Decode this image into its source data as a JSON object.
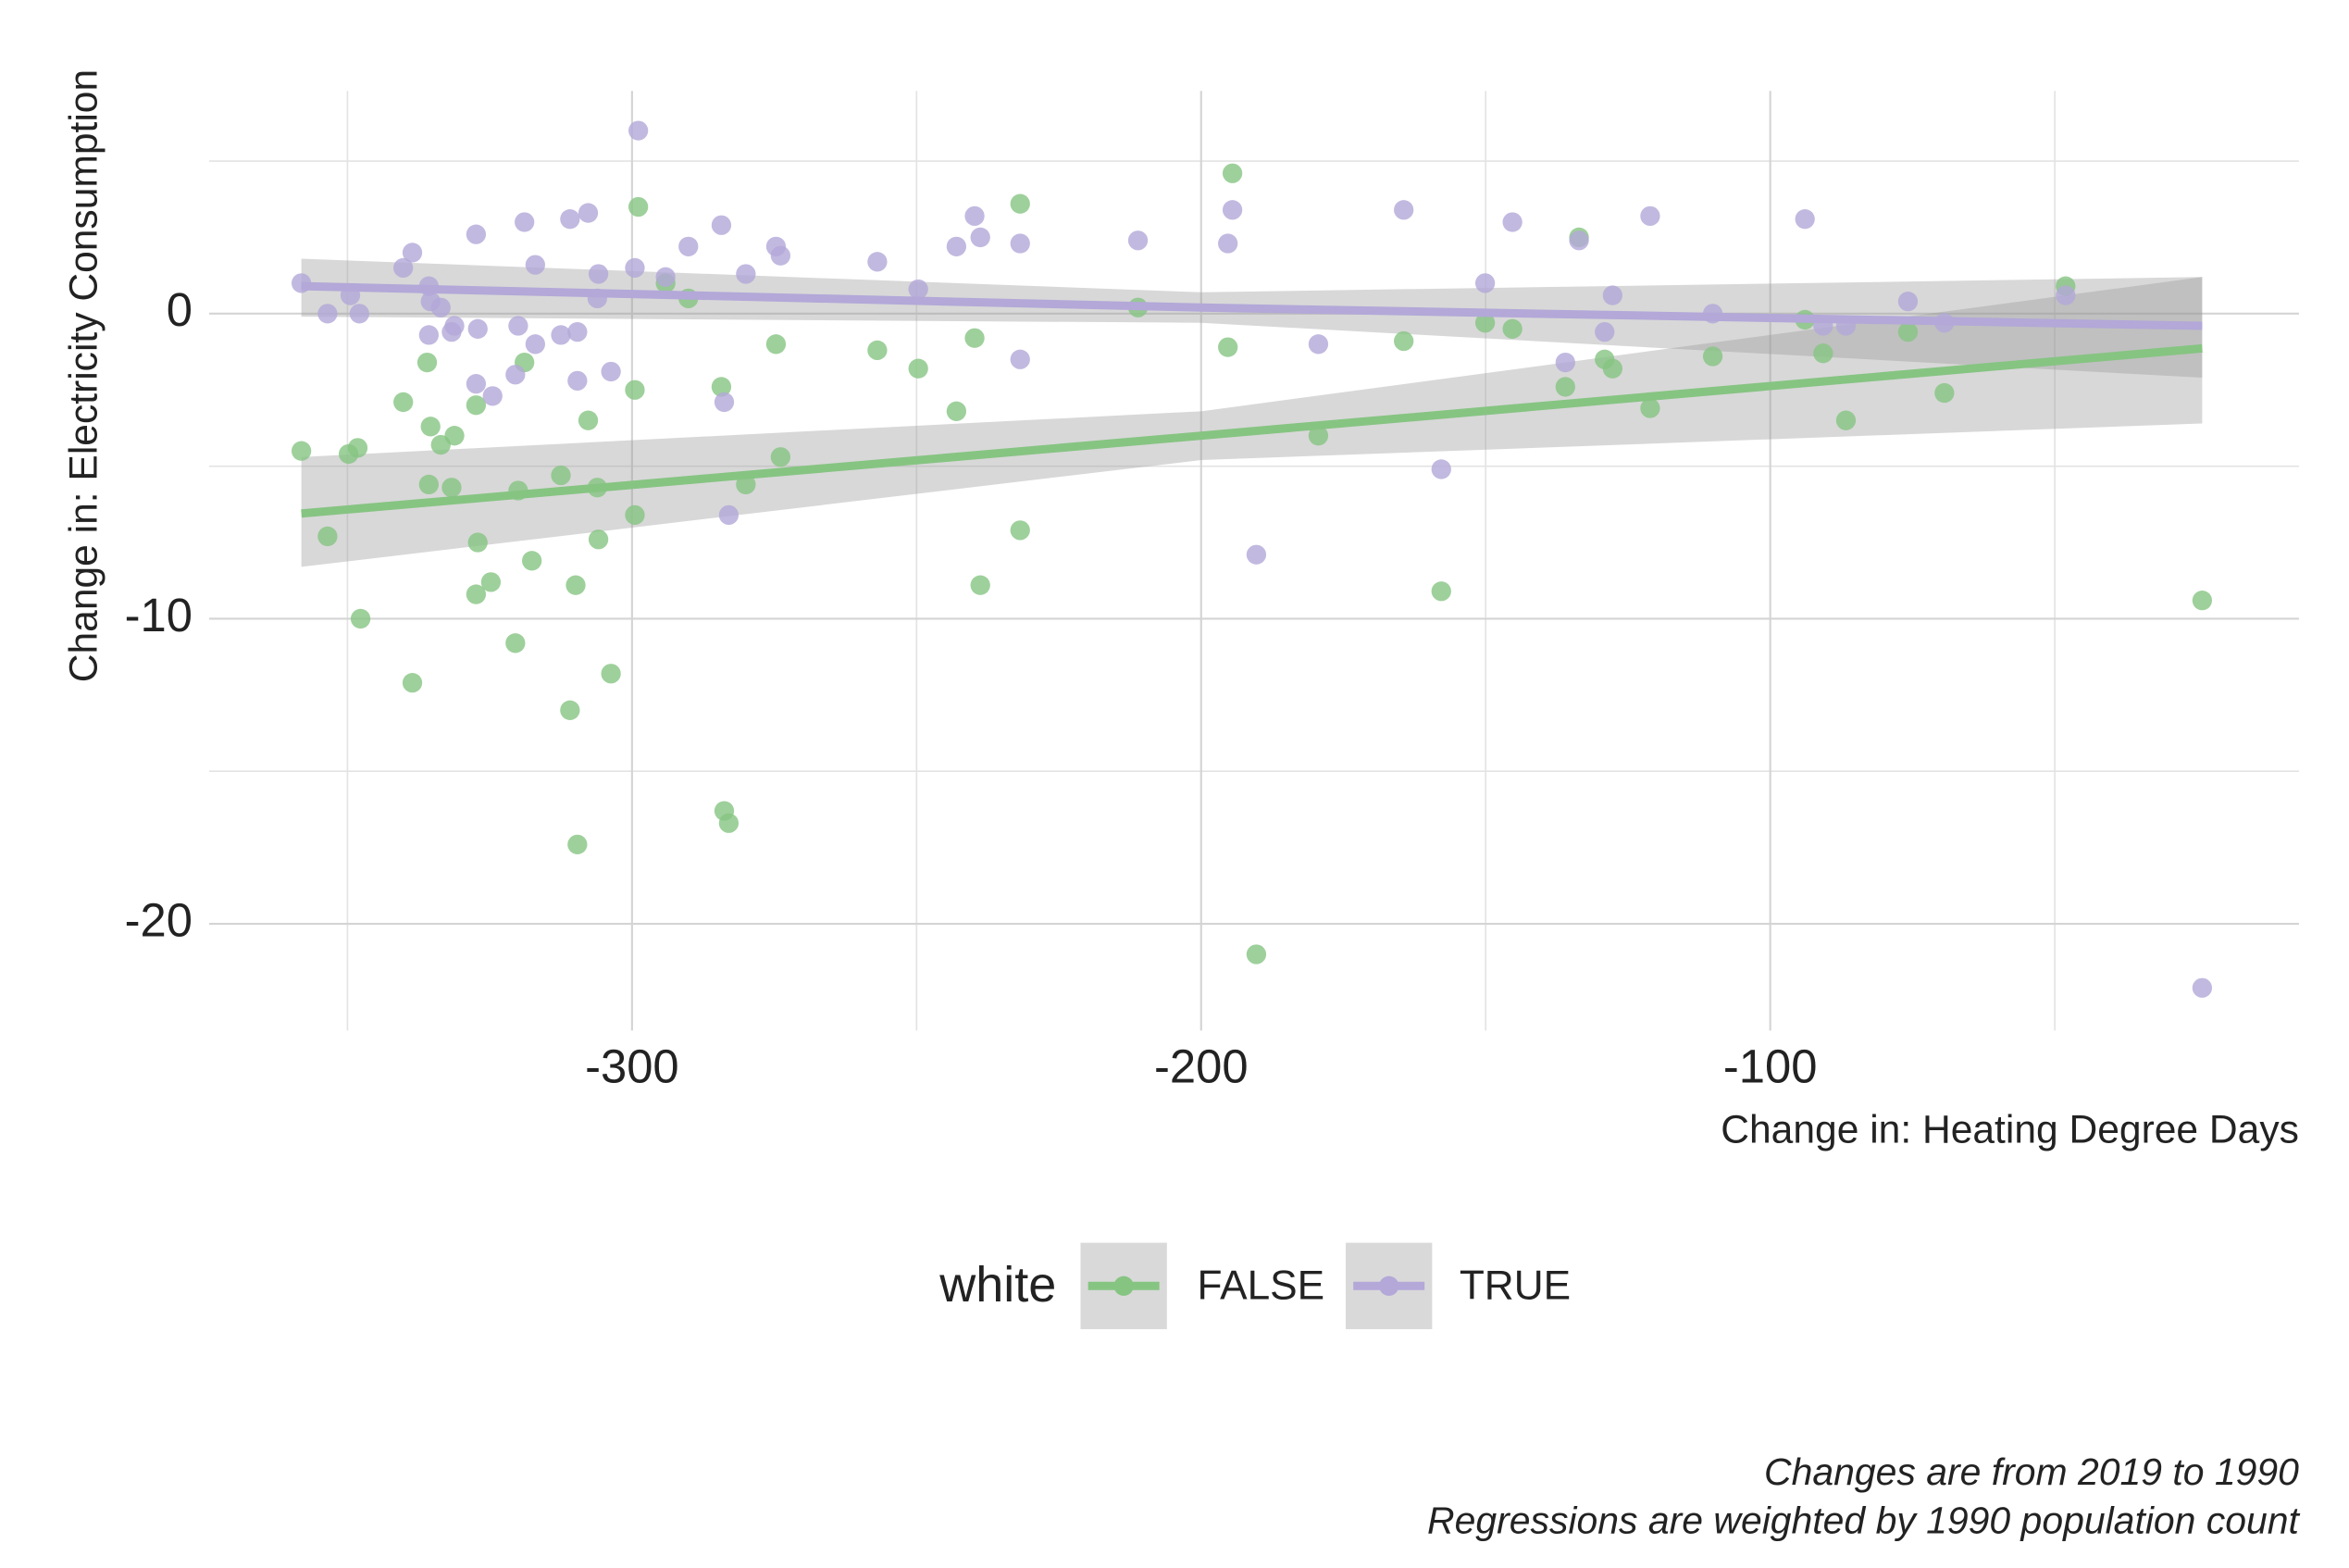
{
  "chart_data": {
    "type": "scatter",
    "x_label": "Change in: Heating Degree Days",
    "y_label": "Change in: Electricity Consumption",
    "legend_title": "white",
    "caption": [
      "Changes are from 2019 to 1990",
      "Regressions are weighted by 1990 population count"
    ],
    "xlim": [
      -374.3,
      -7.1
    ],
    "ylim": [
      -23.5,
      7.3
    ],
    "xticks": [
      -300,
      -200,
      -100
    ],
    "yticks": [
      -20,
      -10,
      0
    ],
    "xminorticks": [
      -350,
      -250,
      -150,
      -50
    ],
    "yminorticks": [
      -15,
      -5,
      5
    ],
    "grid": true,
    "legend": "bottom",
    "series": [
      {
        "name": "FALSE",
        "color": "#86c482",
        "x": [
          -358.1,
          -349.8,
          -348.2,
          -353.5,
          -347.7,
          -338.6,
          -340.2,
          -336,
          -335.4,
          -333.6,
          -331.2,
          -335.7,
          -331.7,
          -327.4,
          -327.1,
          -327.4,
          -324.8,
          -320.5,
          -320,
          -318.9,
          -317.6,
          -312.5,
          -310.9,
          -309.6,
          -309.9,
          -307.7,
          -306.1,
          -305.9,
          -303.7,
          -299.5,
          -299.5,
          -298.9,
          -294.1,
          -290.1,
          -284.3,
          -283.8,
          -283,
          -280,
          -274.7,
          -273.9,
          -256.9,
          -249.7,
          -243,
          -239.8,
          -238.8,
          -231.8,
          -231.8,
          -211.1,
          -194.5,
          -195.3,
          -190.3,
          -179.4,
          -164.4,
          -157.8,
          -150.1,
          -145.3,
          -136,
          -133.6,
          -129.1,
          -127.7,
          -121.1,
          -110.1,
          -93.9,
          -90.7,
          -86.7,
          -75.8,
          -69.4,
          -48.1,
          -24.1
        ],
        "values": [
          -4.5,
          -4.6,
          -4.4,
          -7.3,
          -10.0,
          -12.1,
          -2.9,
          -1.6,
          -3.7,
          -4.3,
          -4.0,
          -5.6,
          -5.7,
          -3.0,
          -7.5,
          -9.2,
          -8.8,
          -10.8,
          -5.8,
          -1.6,
          -8.1,
          -5.3,
          -13.0,
          -17.4,
          -8.9,
          -3.5,
          -5.7,
          -7.4,
          -11.8,
          -2.5,
          -6.6,
          3.5,
          1.0,
          0.5,
          -2.4,
          -16.3,
          -16.7,
          -5.6,
          -1.0,
          -4.7,
          -1.2,
          -1.8,
          -3.2,
          -0.8,
          -8.9,
          3.6,
          -7.1,
          0.2,
          4.6,
          -1.1,
          -21.0,
          -4.0,
          -0.9,
          -9.1,
          -0.3,
          -0.5,
          -2.4,
          2.5,
          -1.5,
          -1.8,
          -3.1,
          -1.4,
          -0.2,
          -1.3,
          -3.5,
          -0.6,
          -2.6,
          0.9,
          -9.4
        ],
        "fit": {
          "x": [
            -358.1,
            -200,
            -24.1
          ],
          "y": [
            -6.55,
            -4.0,
            -1.14
          ],
          "upper": [
            -4.7,
            -3.2,
            1.2
          ],
          "lower": [
            -8.3,
            -4.8,
            -3.6
          ]
        }
      },
      {
        "name": "TRUE",
        "color": "#b3a8d8",
        "x": [
          -358.1,
          -353.5,
          -349.5,
          -347.9,
          -340.2,
          -338.6,
          -335.7,
          -335.4,
          -335.7,
          -333.6,
          -331.7,
          -331.2,
          -327.4,
          -327.1,
          -327.4,
          -324.5,
          -320.5,
          -320,
          -318.9,
          -317,
          -317,
          -312.5,
          -310.9,
          -309.6,
          -309.6,
          -307.7,
          -306.1,
          -305.9,
          -303.7,
          -299.5,
          -298.9,
          -294.1,
          -290.1,
          -284.3,
          -283.8,
          -283,
          -280,
          -274.7,
          -273.9,
          -256.9,
          -249.7,
          -243,
          -239.8,
          -238.8,
          -231.8,
          -231.8,
          -211.1,
          -194.5,
          -195.3,
          -190.3,
          -179.4,
          -164.4,
          -157.8,
          -150.1,
          -145.3,
          -136,
          -133.6,
          -129.1,
          -127.7,
          -121.1,
          -110.1,
          -93.9,
          -90.7,
          -86.7,
          -75.8,
          -69.4,
          -48.1,
          -24.1
        ],
        "values": [
          1.0,
          0.0,
          0.6,
          0.0,
          1.5,
          2.0,
          0.9,
          0.4,
          -0.7,
          0.2,
          -0.6,
          -0.4,
          2.6,
          -0.5,
          -2.3,
          -2.7,
          -2.0,
          -0.4,
          3.0,
          -1.0,
          1.6,
          -0.7,
          3.1,
          -0.6,
          -2.2,
          3.3,
          0.5,
          1.3,
          -1.9,
          1.5,
          6.0,
          1.2,
          2.2,
          2.9,
          -2.9,
          -6.6,
          1.3,
          2.2,
          1.9,
          1.7,
          0.8,
          2.2,
          3.2,
          2.5,
          -1.5,
          2.3,
          2.4,
          3.4,
          2.3,
          -7.9,
          -1.0,
          3.4,
          -5.1,
          1.0,
          3.0,
          -1.6,
          2.4,
          -0.6,
          0.6,
          3.2,
          0.0,
          3.1,
          -0.4,
          -0.4,
          0.4,
          -0.3,
          0.6,
          -22.1
        ],
        "fit": {
          "x": [
            -358.1,
            -200,
            -24.1
          ],
          "y": [
            0.9,
            0.2,
            -0.4
          ],
          "upper": [
            1.8,
            0.7,
            1.2
          ],
          "lower": [
            -0.1,
            -0.3,
            -2.1
          ]
        }
      }
    ]
  }
}
